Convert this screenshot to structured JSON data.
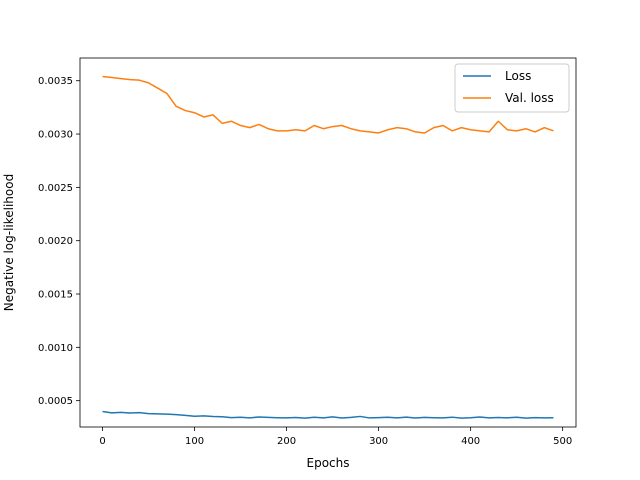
{
  "chart_data": {
    "type": "line",
    "title": "",
    "xlabel": "Epochs",
    "ylabel": "Negative log-likelihood",
    "xlim": [
      -24.5,
      514.5
    ],
    "ylim": [
      0.000253,
      0.003713
    ],
    "grid": false,
    "legend_position": "top-right",
    "x_ticks": [
      0,
      100,
      200,
      300,
      400,
      500
    ],
    "x_tick_labels": [
      "0",
      "100",
      "200",
      "300",
      "400",
      "500"
    ],
    "y_ticks": [
      0.0005,
      0.001,
      0.0015,
      0.002,
      0.0025,
      0.003,
      0.0035
    ],
    "y_tick_labels": [
      "0.0005",
      "0.0010",
      "0.0015",
      "0.0020",
      "0.0025",
      "0.0030",
      "0.0035"
    ],
    "x": [
      0,
      10,
      20,
      30,
      40,
      50,
      60,
      70,
      80,
      90,
      100,
      110,
      120,
      130,
      140,
      150,
      160,
      170,
      180,
      190,
      200,
      210,
      220,
      230,
      240,
      250,
      260,
      270,
      280,
      290,
      300,
      310,
      320,
      330,
      340,
      350,
      360,
      370,
      380,
      390,
      400,
      410,
      420,
      430,
      440,
      450,
      460,
      470,
      480,
      490
    ],
    "series": [
      {
        "name": "Loss",
        "color": "#1f77b4",
        "values": [
          0.000398,
          0.000386,
          0.00039,
          0.000384,
          0.000388,
          0.000378,
          0.000376,
          0.000374,
          0.000369,
          0.000362,
          0.000354,
          0.000357,
          0.000352,
          0.000349,
          0.000341,
          0.000344,
          0.000339,
          0.000347,
          0.000343,
          0.00034,
          0.000338,
          0.000342,
          0.000336,
          0.000344,
          0.000339,
          0.000348,
          0.000337,
          0.000343,
          0.000352,
          0.000338,
          0.000341,
          0.000344,
          0.000339,
          0.000346,
          0.000337,
          0.000343,
          0.00034,
          0.000338,
          0.000345,
          0.000336,
          0.00034,
          0.000347,
          0.000338,
          0.000342,
          0.000339,
          0.000344,
          0.000336,
          0.000341,
          0.000338,
          0.00034
        ]
      },
      {
        "name": "Val. loss",
        "color": "#ff7f0e",
        "values": [
          0.00354,
          0.00353,
          0.00352,
          0.00351,
          0.003505,
          0.00348,
          0.00343,
          0.00338,
          0.00326,
          0.00322,
          0.0032,
          0.00316,
          0.00318,
          0.0031,
          0.00312,
          0.00308,
          0.00306,
          0.00309,
          0.00305,
          0.00303,
          0.00303,
          0.00304,
          0.00303,
          0.00308,
          0.00305,
          0.00307,
          0.00308,
          0.00305,
          0.00303,
          0.00302,
          0.00301,
          0.00304,
          0.00306,
          0.00305,
          0.00302,
          0.00301,
          0.00306,
          0.00308,
          0.00303,
          0.00306,
          0.00304,
          0.00303,
          0.00302,
          0.00312,
          0.00304,
          0.00303,
          0.00305,
          0.00302,
          0.00306,
          0.00303
        ]
      }
    ]
  }
}
